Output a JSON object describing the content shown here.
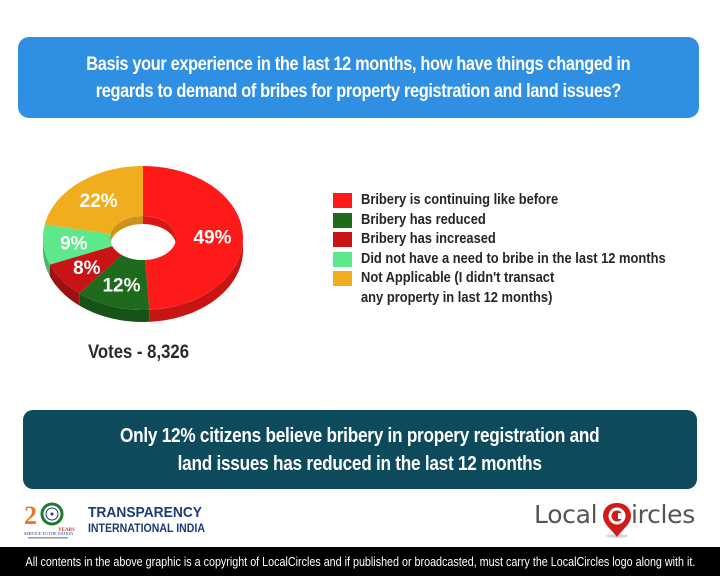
{
  "header": {
    "question_line1": "Basis your experience in the last 12 months, how have things changed in",
    "question_line2": "regards to demand of bribes for property registration and land issues?"
  },
  "votes_label": "Votes - 8,326",
  "legend": [
    {
      "label": "Bribery is continuing like before",
      "color": "#ff1a1a"
    },
    {
      "label": "Bribery has reduced",
      "color": "#1e6b1e"
    },
    {
      "label": "Bribery has increased",
      "color": "#c81414"
    },
    {
      "label": "Did not have a need to bribe in the last 12 months",
      "color": "#5ee88c"
    },
    {
      "label": "Not Applicable (I didn't transact any property in last 12 months)",
      "color": "#f0ad1e"
    }
  ],
  "conclusion": {
    "line1": "Only 12% citizens believe bribery in propery registration and",
    "line2": "land issues has reduced in the last 12 months"
  },
  "logos": {
    "ti_line1": "TRANSPARENCY",
    "ti_line2": "INTERNATIONAL INDIA",
    "ti_badge": "20",
    "lc_part1": "Local",
    "lc_part2": "ircles"
  },
  "footer": {
    "copyright": "All contents in the above graphic is a copyright of LocalCircles and if published or broadcasted, must carry the LocalCircles logo along with it."
  },
  "chart_data": {
    "type": "pie",
    "style": "3d-donut",
    "title": "Basis your experience in the last 12 months, how have things changed in regards to demand of bribes for property registration and land issues?",
    "categories": [
      "Bribery is continuing like before",
      "Bribery has reduced",
      "Bribery has increased",
      "Did not have a need to bribe in the last 12 months",
      "Not Applicable (I didn't transact any property in last 12 months)"
    ],
    "values": [
      49,
      12,
      8,
      9,
      22
    ],
    "labels": [
      "49%",
      "12%",
      "8%",
      "9%",
      "22%"
    ],
    "colors": [
      "#ff1a1a",
      "#1e6b1e",
      "#c81414",
      "#5ee88c",
      "#f0ad1e"
    ],
    "total_votes": 8326,
    "legend_position": "right"
  }
}
